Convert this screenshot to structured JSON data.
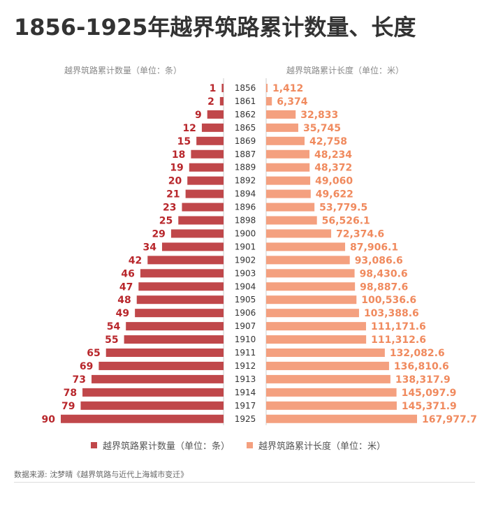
{
  "title": "1856-1925年越界筑路累计数量、长度",
  "subtitle_left": "越界筑路累计数量（单位：条）",
  "subtitle_right": "越界筑路累计长度（单位：米）",
  "legend": {
    "count_label": "越界筑路累计数量（单位：条）",
    "length_label": "越界筑路累计长度（单位：米）"
  },
  "colors": {
    "count": "#c0474a",
    "length": "#f4a07f",
    "count_text": "#b8262b",
    "length_text": "#f08a5e",
    "year_text": "#333333"
  },
  "source": "数据来源: 沈梦晴《越界筑路与近代上海城市变迁》",
  "chart_data": {
    "type": "bar",
    "categories": [
      "1856",
      "1861",
      "1862",
      "1865",
      "1869",
      "1887",
      "1889",
      "1892",
      "1894",
      "1896",
      "1898",
      "1900",
      "1901",
      "1902",
      "1903",
      "1904",
      "1905",
      "1906",
      "1907",
      "1910",
      "1911",
      "1912",
      "1913",
      "1914",
      "1917",
      "1925"
    ],
    "series": [
      {
        "name": "越界筑路累计数量（单位：条）",
        "values": [
          1,
          2,
          9,
          12,
          15,
          18,
          19,
          20,
          21,
          23,
          25,
          29,
          34,
          42,
          46,
          47,
          48,
          49,
          54,
          55,
          65,
          69,
          73,
          78,
          79,
          90
        ],
        "labels": [
          "1",
          "2",
          "9",
          "12",
          "15",
          "18",
          "19",
          "20",
          "21",
          "23",
          "25",
          "29",
          "34",
          "42",
          "46",
          "47",
          "48",
          "49",
          "54",
          "55",
          "65",
          "69",
          "73",
          "78",
          "79",
          "90"
        ]
      },
      {
        "name": "越界筑路累计长度（单位：米）",
        "values": [
          1412,
          6374,
          32833,
          35745,
          42758,
          48234,
          48372,
          49060,
          49622,
          53779.5,
          56526.1,
          72374.6,
          87906.1,
          93086.6,
          98430.6,
          98887.6,
          100536.6,
          103388.6,
          111171.6,
          111312.6,
          132082.6,
          136810.6,
          138317.9,
          145097.9,
          145371.9,
          167977.7
        ],
        "labels": [
          "1,412",
          "6,374",
          "32,833",
          "35,745",
          "42,758",
          "48,234",
          "48,372",
          "49,060",
          "49,622",
          "53,779.5",
          "56,526.1",
          "72,374.6",
          "87,906.1",
          "93,086.6",
          "98,430.6",
          "98,887.6",
          "100,536.6",
          "103,388.6",
          "111,171.6",
          "111,312.6",
          "132,082.6",
          "136,810.6",
          "138,317.9",
          "145,097.9",
          "145,371.9",
          "167,977.7"
        ]
      }
    ],
    "xlim_count": [
      0,
      100
    ],
    "xlim_length": [
      0,
      190000
    ],
    "grid": false,
    "legend_position": "bottom"
  }
}
